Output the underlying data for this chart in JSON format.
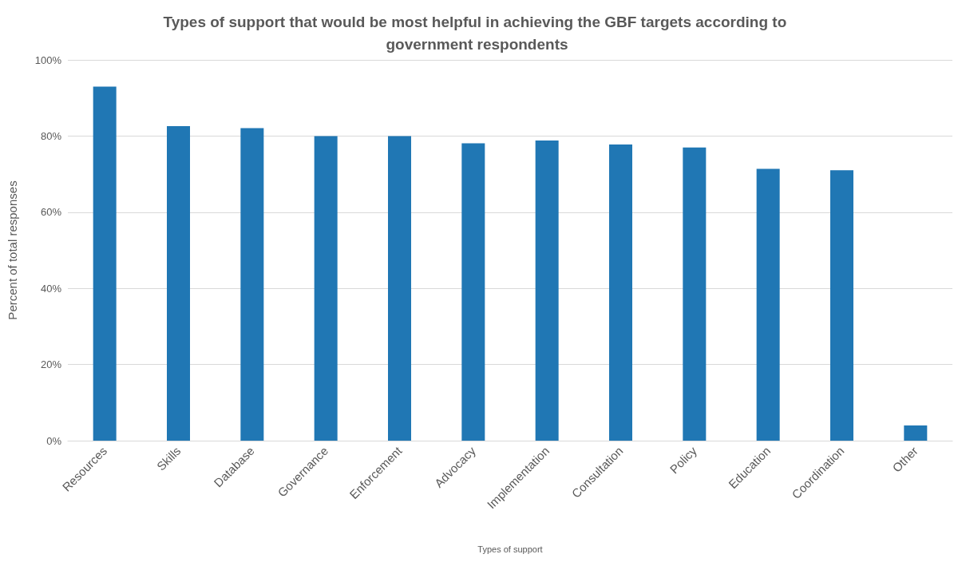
{
  "chart_data": {
    "type": "bar",
    "title": "Types of support that would be most helpful in achieving the GBF targets according to government respondents",
    "xlabel": "Types of support",
    "ylabel": "Percent of total responses",
    "categories": [
      "Resources",
      "Skills",
      "Database",
      "Governance",
      "Enforcement",
      "Advocacy",
      "Implementation",
      "Consultation",
      "Policy",
      "Education",
      "Coordination",
      "Other"
    ],
    "series": [
      {
        "color": "#2077b4",
        "values": [
          93,
          82.6,
          82.1,
          80,
          80,
          78.1,
          78.8,
          77.8,
          77,
          71.4,
          71,
          4
        ]
      }
    ],
    "ylim": [
      0,
      100
    ],
    "yticks": [
      {
        "value": 0,
        "label": "0%"
      },
      {
        "value": 20,
        "label": "20%"
      },
      {
        "value": 40,
        "label": "40%"
      },
      {
        "value": 60,
        "label": "60%"
      },
      {
        "value": 80,
        "label": "80%"
      },
      {
        "value": 100,
        "label": "100%"
      }
    ],
    "grid": "y"
  }
}
